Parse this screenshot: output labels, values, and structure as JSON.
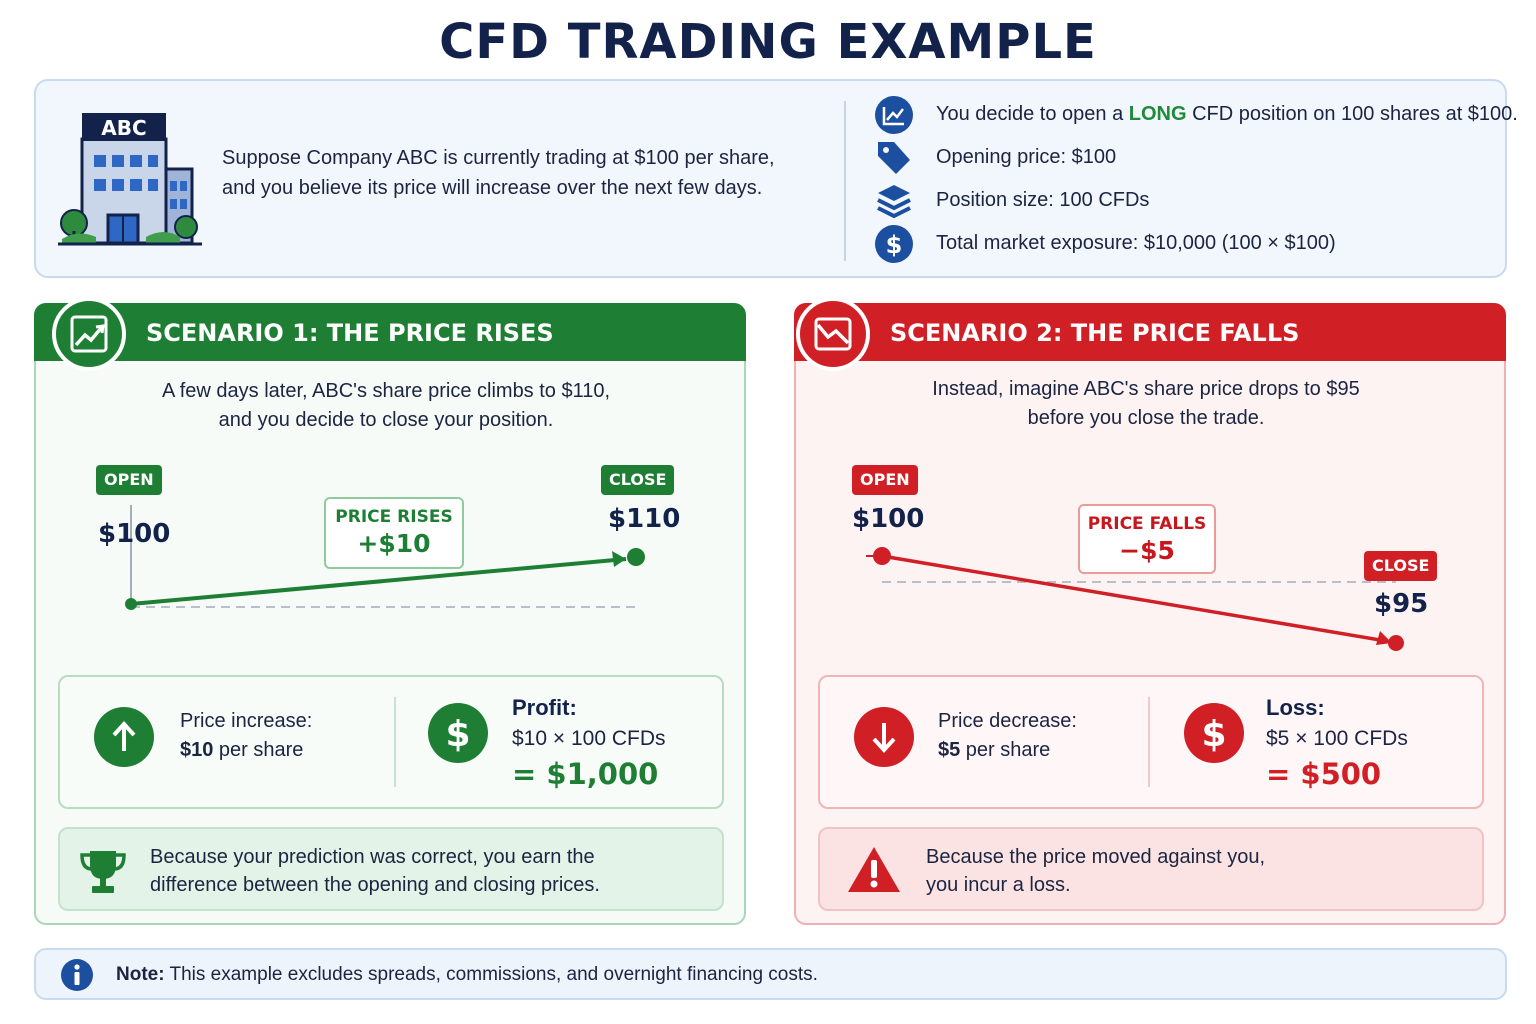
{
  "title": "CFD TRADING EXAMPLE",
  "intro": {
    "building_label": "ABC",
    "text_line1": "Suppose Company ABC is currently trading at $100 per share,",
    "text_line2": "and you believe its price will increase over the next few days.",
    "facts": {
      "decision_prefix": "You decide to open a ",
      "decision_highlight": "LONG",
      "decision_suffix": " CFD position on 100 shares at $100.",
      "opening_price": "Opening price: $100",
      "position_size": "Position size:  100 CFDs",
      "exposure": "Total market exposure: $10,000 (100 × $100)"
    },
    "icons": [
      "chart-line-icon",
      "price-tag-icon",
      "layers-icon",
      "dollar-icon"
    ]
  },
  "scenario1": {
    "title": "SCENARIO 1: THE PRICE RISES",
    "desc_line1": "A few days later, ABC's share price climbs to $110,",
    "desc_line2": "and you decide to close your position.",
    "open_tag": "OPEN",
    "close_tag": "CLOSE",
    "open_price": "$100",
    "close_price": "$110",
    "move_label": "PRICE RISES",
    "move_value": "+$10",
    "calc_label": "Price increase:",
    "calc_value_bold": "$10",
    "calc_value_rest": " per share",
    "result_title": "Profit:",
    "result_formula": "$10 × 100 CFDs",
    "result_total": "= $1,000",
    "conclusion_line1": "Because your prediction was correct, you earn the",
    "conclusion_line2": "difference between the opening and closing prices.",
    "color": "#1e7f34"
  },
  "scenario2": {
    "title": "SCENARIO 2: THE PRICE FALLS",
    "desc_line1": "Instead, imagine ABC's share price drops to $95",
    "desc_line2": "before you close the trade.",
    "open_tag": "OPEN",
    "close_tag": "CLOSE",
    "open_price": "$100",
    "close_price": "$95",
    "move_label": "PRICE FALLS",
    "move_value": "−$5",
    "calc_label": "Price decrease:",
    "calc_value_bold": "$5",
    "calc_value_rest": " per share",
    "result_title": "Loss:",
    "result_formula": "$5 × 100 CFDs",
    "result_total": "= $500",
    "conclusion_line1": "Because the price moved against you,",
    "conclusion_line2": "you incur a loss.",
    "color": "#d11f26"
  },
  "note": {
    "label": "Note:",
    "text": " This example excludes spreads, commissions, and overnight financing costs."
  }
}
